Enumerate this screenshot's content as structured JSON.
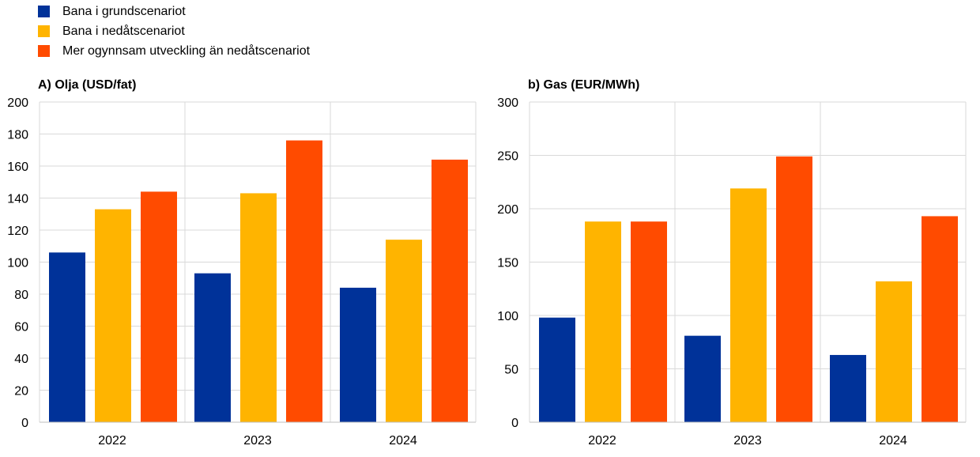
{
  "legend": [
    {
      "label": "Bana i grundscenariot",
      "color": "#003299"
    },
    {
      "label": "Bana i nedåtscenariot",
      "color": "#FFB400"
    },
    {
      "label": "Mer ogynnsam utveckling än nedåtscenariot",
      "color": "#FF4B00"
    }
  ],
  "chart_data": [
    {
      "type": "bar",
      "title": "A) Olja (USD/fat)",
      "categories": [
        "2022",
        "2023",
        "2024"
      ],
      "ylim": [
        0,
        200
      ],
      "yticks": [
        0,
        20,
        40,
        60,
        80,
        100,
        120,
        140,
        160,
        180,
        200
      ],
      "grid": true,
      "series": [
        {
          "name": "Bana i grundscenariot",
          "values": [
            106,
            93,
            84
          ]
        },
        {
          "name": "Bana i nedåtscenariot",
          "values": [
            133,
            143,
            114
          ]
        },
        {
          "name": "Mer ogynnsam utveckling än nedåtscenariot",
          "values": [
            144,
            176,
            164
          ]
        }
      ]
    },
    {
      "type": "bar",
      "title": "b) Gas (EUR/MWh)",
      "categories": [
        "2022",
        "2023",
        "2024"
      ],
      "ylim": [
        0,
        300
      ],
      "yticks": [
        0,
        50,
        100,
        150,
        200,
        250,
        300
      ],
      "grid": true,
      "series": [
        {
          "name": "Bana i grundscenariot",
          "values": [
            98,
            81,
            63
          ]
        },
        {
          "name": "Bana i nedåtscenariot",
          "values": [
            188,
            219,
            132
          ]
        },
        {
          "name": "Mer ogynnsam utveckling än nedåtscenariot",
          "values": [
            188,
            249,
            193
          ]
        }
      ]
    }
  ]
}
